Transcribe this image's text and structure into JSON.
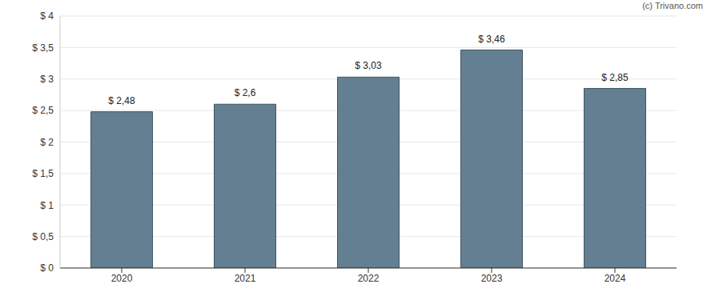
{
  "chart_data": {
    "type": "bar",
    "annotation": "(c) Trivano.com",
    "categories": [
      "2020",
      "2021",
      "2022",
      "2023",
      "2024"
    ],
    "values": [
      2.48,
      2.6,
      3.03,
      3.46,
      2.85
    ],
    "value_labels": [
      "$ 2,48",
      "$ 2,6",
      "$ 3,03",
      "$ 3,46",
      "$ 2,85"
    ],
    "data_labels": true,
    "color": "#647f91",
    "ylim": [
      0,
      4
    ],
    "yticks": [
      {
        "value": 0,
        "label": "$ 0"
      },
      {
        "value": 0.5,
        "label": "$ 0,5"
      },
      {
        "value": 1,
        "label": "$ 1"
      },
      {
        "value": 1.5,
        "label": "$ 1,5"
      },
      {
        "value": 2,
        "label": "$ 2"
      },
      {
        "value": 2.5,
        "label": "$ 2,5"
      },
      {
        "value": 3,
        "label": "$ 3"
      },
      {
        "value": 3.5,
        "label": "$ 3,5"
      },
      {
        "value": 4,
        "label": "$ 4"
      }
    ],
    "grid": true
  }
}
